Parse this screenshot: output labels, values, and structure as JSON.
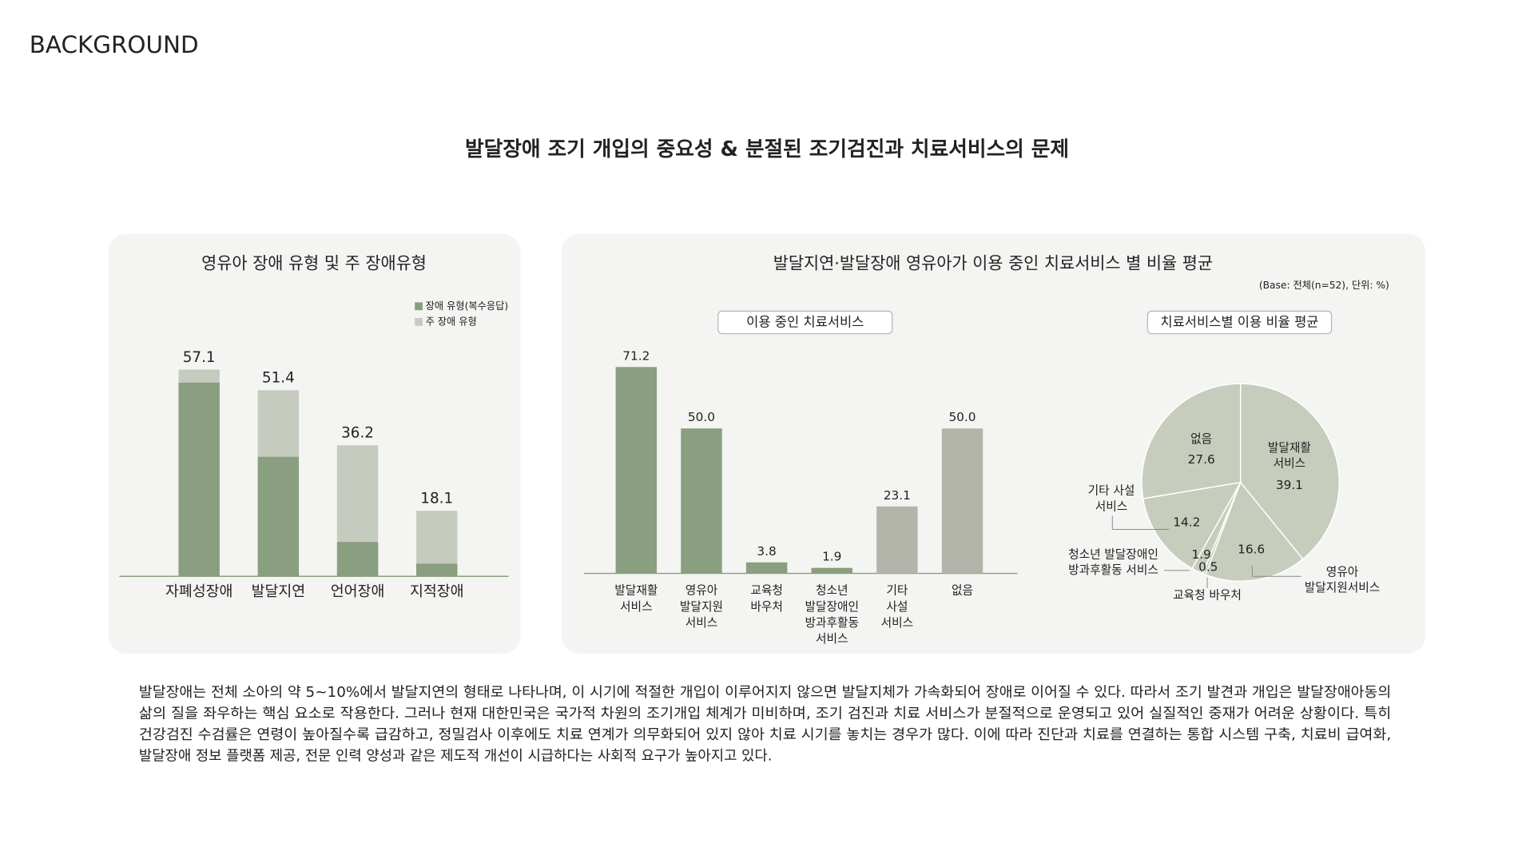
{
  "header": "BACKGROUND",
  "title": "발달장애 조기 개입의 중요성 & 분절된 조기검진과 치료서비스의 문제",
  "panel_title": "발달지연·발달장애 영유아가 이용 중인 치료서비스 별 비율 평균",
  "note": "(Base: 전체(n=52), 단위: %)",
  "chart_data": [
    {
      "type": "bar",
      "title": "영유아 장애 유형 및 주 장애유형",
      "barmode": "overlay",
      "legend": "upper right",
      "categories": [
        "자폐성장애",
        "발달지연",
        "언어장애",
        "지적장애"
      ],
      "series": [
        {
          "name": "장애 유형(복수응답)",
          "color": "#8a9e80",
          "values": [
            53.5,
            33.0,
            9.5,
            3.5
          ]
        },
        {
          "name": "주 장애 유형",
          "color": "#c6cbbf",
          "values": [
            57.1,
            51.4,
            36.2,
            18.1
          ],
          "labels": true
        }
      ],
      "ylim": [
        0,
        60
      ]
    },
    {
      "type": "bar",
      "title": "이용 중인 치료서비스",
      "categories": [
        [
          "발달재활",
          "서비스"
        ],
        [
          "영유아",
          "발달지원",
          "서비스"
        ],
        [
          "교육청",
          "바우처"
        ],
        [
          "청소년",
          "발달장애인",
          "방과후활동",
          "서비스"
        ],
        [
          "기타",
          "사설",
          "서비스"
        ],
        [
          "없음"
        ]
      ],
      "values": [
        71.2,
        50.0,
        3.8,
        1.9,
        23.1,
        50.0
      ],
      "value_labels": [
        "71.2",
        "50.0",
        "3.8",
        "1.9",
        "23.1",
        "50.0"
      ],
      "colors": [
        "#8a9e80",
        "#8a9e80",
        "#8a9e80",
        "#8a9e80",
        "#b3b5ab",
        "#b3b5ab"
      ],
      "ylim": [
        0,
        80
      ]
    },
    {
      "type": "pie",
      "title": "치료서비스별 이용 비율 평균",
      "categories": [
        [
          "발달재활",
          "서비스"
        ],
        [
          "영유아",
          "발달지원서비스"
        ],
        [
          "교육청 바우처"
        ],
        [
          "청소년 발달장애인",
          "방과후활동 서비스"
        ],
        [
          "기타 사설",
          "서비스"
        ],
        [
          "없음"
        ]
      ],
      "values": [
        39.1,
        16.6,
        0.5,
        1.9,
        14.2,
        27.6
      ],
      "color": "#c6cdbc"
    }
  ],
  "paragraph": [
    "발달장애는 전체 소아의 약 5~10%에서 발달지연의 형태로 나타나며, 이 시기에 적절한 개입이 이루어지지 않으면 발달지체가 가속화되어 장애로 이어질 수 있다. 따라서 조기 발견과 개입은 발달장애아동의",
    "삶의 질을 좌우하는 핵심 요소로 작용한다. 그러나 현재 대한민국은 국가적 차원의 조기개입 체계가 미비하며, 조기 검진과 치료 서비스가 분절적으로 운영되고 있어 실질적인 중재가 어려운 상황이다. 특히",
    "건강검진 수검률은 연령이 높아질수록 급감하고, 정밀검사 이후에도 치료 연계가 의무화되어 있지 않아 치료 시기를 놓치는 경우가 많다. 이에 따라 진단과 치료를 연결하는 통합 시스템 구축, 치료비 급여화,",
    "발달장애 정보 플랫폼 제공, 전문 인력 양성과 같은 제도적 개선이 시급하다는 사회적 요구가 높아지고 있다."
  ]
}
